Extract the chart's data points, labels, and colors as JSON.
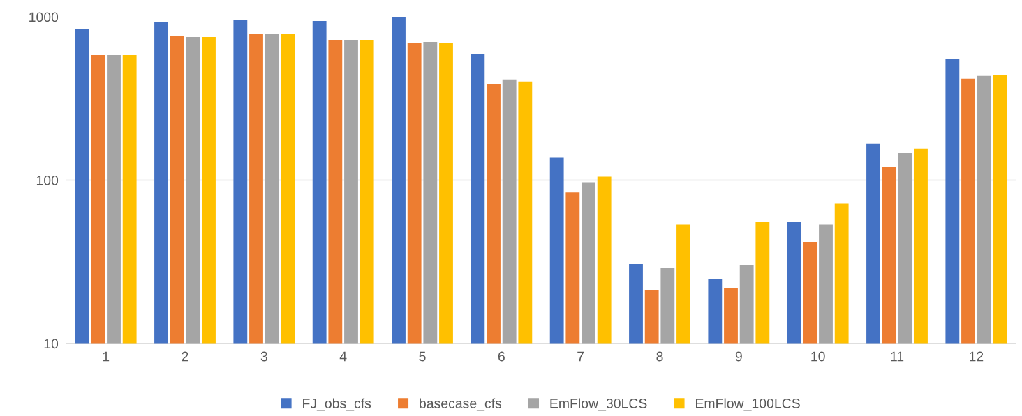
{
  "chart_data": {
    "type": "bar",
    "log": "y",
    "categories": [
      "1",
      "2",
      "3",
      "4",
      "5",
      "6",
      "7",
      "8",
      "9",
      "10",
      "11",
      "12"
    ],
    "series": [
      {
        "name": "FJ_obs_cfs",
        "color": "#4472c4",
        "values": [
          847,
          925,
          962,
          943,
          1000,
          589,
          137,
          30.6,
          24.9,
          55.5,
          168,
          550
        ]
      },
      {
        "name": "basecase_cfs",
        "color": "#ed7d31",
        "values": [
          583,
          767,
          783,
          716,
          689,
          387,
          84,
          21.3,
          21.7,
          41.8,
          120,
          418
        ]
      },
      {
        "name": "EmFlow_30LCS",
        "color": "#a5a5a5",
        "values": [
          583,
          752,
          783,
          716,
          703,
          410,
          97,
          29.1,
          30.3,
          53.4,
          147,
          435
        ]
      },
      {
        "name": "EmFlow_100LCS",
        "color": "#ffc000",
        "values": [
          583,
          752,
          783,
          716,
          689,
          402,
          105,
          53.4,
          55.5,
          71.7,
          155,
          443
        ]
      }
    ],
    "ylim": [
      10,
      1000
    ],
    "yticks": [
      10,
      100,
      1000
    ],
    "grid": "y",
    "legend": "bottom"
  }
}
